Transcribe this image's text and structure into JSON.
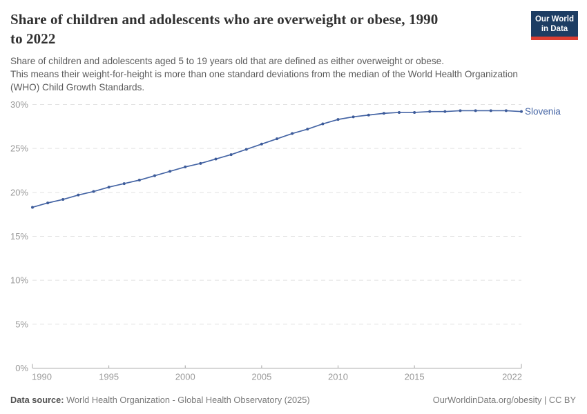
{
  "header": {
    "title_line1": "Share of children and adolescents who are overweight or obese, 1990",
    "title_line2": "to 2022",
    "subtitle_lines": [
      "Share of children and adolescents aged 5 to 19 years old that are defined as either overweight or obese.",
      "This means their weight-for-height is more than one standard deviations from the median of the World Health Organization",
      "(WHO) Child Growth Standards."
    ],
    "logo": {
      "line1": "Our World",
      "line2": "in Data",
      "bg": "#1d3d63",
      "accent": "#dc3e32"
    }
  },
  "chart_data": {
    "type": "line",
    "title": "Share of children and adolescents who are overweight or obese, 1990 to 2022",
    "xlabel": "",
    "ylabel": "",
    "xlim": [
      1990,
      2022
    ],
    "ylim": [
      0,
      30
    ],
    "x_ticks": [
      1990,
      1995,
      2000,
      2005,
      2010,
      2015,
      2022
    ],
    "y_ticks": [
      0,
      5,
      10,
      15,
      20,
      25,
      30
    ],
    "y_tick_suffix": "%",
    "grid": "horizontal-dashed",
    "legend_position": "end-of-line-label",
    "colors": {
      "grid": "#e2e2e2",
      "axis": "#a5a5a5",
      "tick_label": "#999999"
    },
    "series": [
      {
        "name": "Slovenia",
        "color": "#4565a5",
        "dot_color": "#3d5b99",
        "x": [
          1990,
          1991,
          1992,
          1993,
          1994,
          1995,
          1996,
          1997,
          1998,
          1999,
          2000,
          2001,
          2002,
          2003,
          2004,
          2005,
          2006,
          2007,
          2008,
          2009,
          2010,
          2011,
          2012,
          2013,
          2014,
          2015,
          2016,
          2017,
          2018,
          2019,
          2020,
          2021,
          2022
        ],
        "values": [
          18.3,
          18.8,
          19.2,
          19.7,
          20.1,
          20.6,
          21.0,
          21.4,
          21.9,
          22.4,
          22.9,
          23.3,
          23.8,
          24.3,
          24.9,
          25.5,
          26.1,
          26.7,
          27.2,
          27.8,
          28.3,
          28.6,
          28.8,
          29.0,
          29.1,
          29.1,
          29.2,
          29.2,
          29.3,
          29.3,
          29.3,
          29.3,
          29.2
        ]
      }
    ]
  },
  "footer": {
    "datasource_label": "Data source:",
    "datasource_value": " World Health Organization - Global Health Observatory (2025)",
    "license": "OurWorldinData.org/obesity | CC BY"
  }
}
